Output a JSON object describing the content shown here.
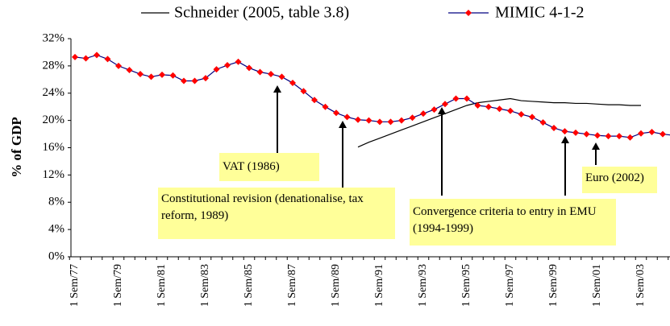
{
  "chart_data": {
    "type": "line",
    "y_label": "% of GDP",
    "categories": [
      "1 Sem/77",
      null,
      null,
      null,
      "1 Sem/79",
      null,
      null,
      null,
      "1 Sem/81",
      null,
      null,
      null,
      "1 Sem/83",
      null,
      null,
      null,
      "1 Sem/85",
      null,
      null,
      null,
      "1 Sem/87",
      null,
      null,
      null,
      "1 Sem/89",
      null,
      null,
      null,
      "1 Sem/91",
      null,
      null,
      null,
      "1 Sem/93",
      null,
      null,
      null,
      "1 Sem/95",
      null,
      null,
      null,
      "1 Sem/97",
      null,
      null,
      null,
      "1 Sem/99",
      null,
      null,
      null,
      "1 Sem/01",
      null,
      null,
      null,
      "1 Sem/03",
      null,
      null,
      null
    ],
    "series": [
      {
        "name": "Schneider (2005, table 3.8)",
        "color": "#000000",
        "marker": false,
        "values": [
          null,
          null,
          null,
          null,
          null,
          null,
          null,
          null,
          null,
          null,
          null,
          null,
          null,
          null,
          null,
          null,
          null,
          null,
          null,
          null,
          null,
          null,
          null,
          null,
          null,
          null,
          16.1,
          16.8,
          17.4,
          18.0,
          18.6,
          19.2,
          19.8,
          20.4,
          21.0,
          21.6,
          22.2,
          22.6,
          22.8,
          23.0,
          23.2,
          22.9,
          22.8,
          22.7,
          22.6,
          22.6,
          22.5,
          22.5,
          22.4,
          22.3,
          22.3,
          22.2,
          22.2,
          null,
          null,
          null
        ]
      },
      {
        "name": "MIMIC 4-1-2",
        "color": "#000080",
        "marker_color": "#ff0000",
        "marker": true,
        "values": [
          29.3,
          29.1,
          29.6,
          29.0,
          28.0,
          27.4,
          26.8,
          26.4,
          26.7,
          26.6,
          25.8,
          25.8,
          26.2,
          27.5,
          28.1,
          28.6,
          27.7,
          27.1,
          26.8,
          26.4,
          25.5,
          24.3,
          23.0,
          22.0,
          21.1,
          20.5,
          20.1,
          20.0,
          19.8,
          19.8,
          20.0,
          20.4,
          21.0,
          21.6,
          22.4,
          23.2,
          23.2,
          22.2,
          22.0,
          21.7,
          21.4,
          20.9,
          20.5,
          19.7,
          18.9,
          18.4,
          18.2,
          18.0,
          17.8,
          17.7,
          17.7,
          17.5,
          18.1,
          18.3,
          18.0,
          17.8
        ]
      }
    ],
    "ylim": [
      0,
      32
    ],
    "yticks": [
      {
        "value": 0,
        "label": "0%"
      },
      {
        "value": 4,
        "label": "4%"
      },
      {
        "value": 8,
        "label": "8%"
      },
      {
        "value": 12,
        "label": "12%"
      },
      {
        "value": 16,
        "label": "16%"
      },
      {
        "value": 20,
        "label": "20%"
      },
      {
        "value": 24,
        "label": "24%"
      },
      {
        "value": 28,
        "label": "28%"
      },
      {
        "value": 32,
        "label": "32%"
      }
    ],
    "annotations": [
      {
        "text": "VAT (1986)"
      },
      {
        "text": "Constitutional revision (denationalise, tax reform, 1989)"
      },
      {
        "text": "Convergence criteria to entry in EMU (1994-1999)"
      },
      {
        "text": "Euro (2002)"
      }
    ]
  }
}
